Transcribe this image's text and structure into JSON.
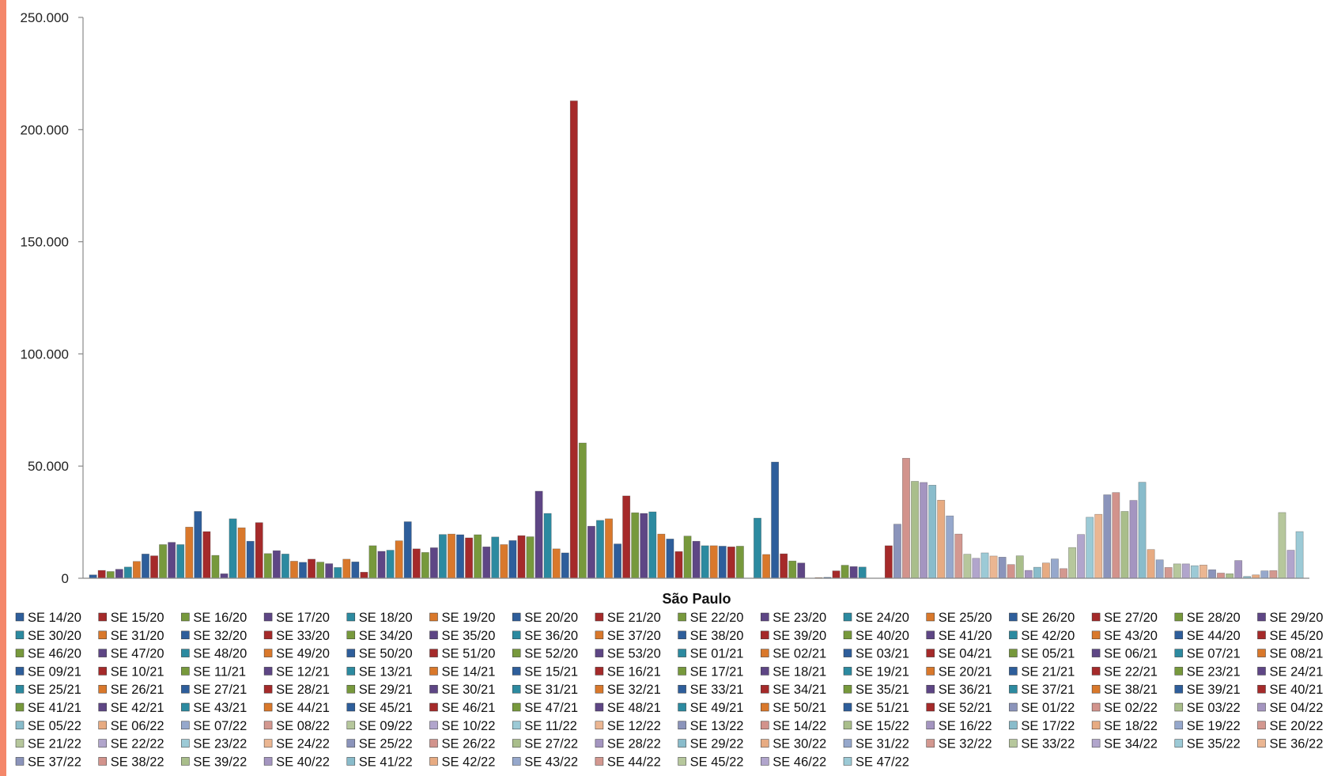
{
  "chart_data": {
    "type": "bar",
    "xlabel": "São Paulo",
    "ylabel": "",
    "ylim": [
      0,
      250000
    ],
    "y_ticks": [
      {
        "value": 0,
        "label": "0"
      },
      {
        "value": 50000,
        "label": "50.000"
      },
      {
        "value": 100000,
        "label": "100.000"
      },
      {
        "value": 150000,
        "label": "150.000"
      },
      {
        "value": 200000,
        "label": "200.000"
      },
      {
        "value": 250000,
        "label": "250.000"
      }
    ],
    "grid": false,
    "legend_position": "bottom",
    "colors": [
      "#2e5e9b",
      "#a52a2a",
      "#77993c",
      "#5e4685",
      "#2c8aa0",
      "#d9782b"
    ],
    "series": [
      {
        "name": "SE 14/20",
        "value": 1500
      },
      {
        "name": "SE 15/20",
        "value": 3500
      },
      {
        "name": "SE 16/20",
        "value": 3000
      },
      {
        "name": "SE 17/20",
        "value": 4000
      },
      {
        "name": "SE 18/20",
        "value": 5000
      },
      {
        "name": "SE 19/20",
        "value": 7500
      },
      {
        "name": "SE 20/20",
        "value": 10800
      },
      {
        "name": "SE 21/20",
        "value": 10000
      },
      {
        "name": "SE 22/20",
        "value": 15000
      },
      {
        "name": "SE 23/20",
        "value": 16000
      },
      {
        "name": "SE 24/20",
        "value": 15000
      },
      {
        "name": "SE 25/20",
        "value": 22800
      },
      {
        "name": "SE 26/20",
        "value": 29800
      },
      {
        "name": "SE 27/20",
        "value": 20800
      },
      {
        "name": "SE 28/20",
        "value": 10200
      },
      {
        "name": "SE 29/20",
        "value": 2000
      },
      {
        "name": "SE 30/20",
        "value": 26500
      },
      {
        "name": "SE 31/20",
        "value": 22500
      },
      {
        "name": "SE 32/20",
        "value": 16500
      },
      {
        "name": "SE 33/20",
        "value": 24800
      },
      {
        "name": "SE 34/20",
        "value": 11000
      },
      {
        "name": "SE 35/20",
        "value": 12300
      },
      {
        "name": "SE 36/20",
        "value": 10800
      },
      {
        "name": "SE 37/20",
        "value": 7600
      },
      {
        "name": "SE 38/20",
        "value": 7100
      },
      {
        "name": "SE 39/20",
        "value": 8500
      },
      {
        "name": "SE 40/20",
        "value": 7200
      },
      {
        "name": "SE 41/20",
        "value": 6500
      },
      {
        "name": "SE 42/20",
        "value": 4800
      },
      {
        "name": "SE 43/20",
        "value": 8500
      },
      {
        "name": "SE 44/20",
        "value": 7300
      },
      {
        "name": "SE 45/20",
        "value": 2700
      },
      {
        "name": "SE 46/20",
        "value": 14500
      },
      {
        "name": "SE 47/20",
        "value": 12000
      },
      {
        "name": "SE 48/20",
        "value": 12500
      },
      {
        "name": "SE 49/20",
        "value": 16700
      },
      {
        "name": "SE 50/20",
        "value": 25200
      },
      {
        "name": "SE 51/20",
        "value": 13100
      },
      {
        "name": "SE 52/20",
        "value": 11500
      },
      {
        "name": "SE 53/20",
        "value": 13600
      },
      {
        "name": "SE 01/21",
        "value": 19500
      },
      {
        "name": "SE 02/21",
        "value": 19700
      },
      {
        "name": "SE 03/21",
        "value": 19400
      },
      {
        "name": "SE 04/21",
        "value": 18000
      },
      {
        "name": "SE 05/21",
        "value": 19400
      },
      {
        "name": "SE 06/21",
        "value": 14000
      },
      {
        "name": "SE 07/21",
        "value": 18400
      },
      {
        "name": "SE 08/21",
        "value": 15000
      },
      {
        "name": "SE 09/21",
        "value": 16800
      },
      {
        "name": "SE 10/21",
        "value": 19000
      },
      {
        "name": "SE 11/21",
        "value": 18500
      },
      {
        "name": "SE 12/21",
        "value": 38800
      },
      {
        "name": "SE 13/21",
        "value": 28900
      },
      {
        "name": "SE 14/21",
        "value": 13100
      },
      {
        "name": "SE 15/21",
        "value": 11300
      },
      {
        "name": "SE 16/21",
        "value": 212800
      },
      {
        "name": "SE 17/21",
        "value": 60300
      },
      {
        "name": "SE 18/21",
        "value": 23200
      },
      {
        "name": "SE 19/21",
        "value": 25800
      },
      {
        "name": "SE 20/21",
        "value": 26500
      },
      {
        "name": "SE 21/21",
        "value": 15300
      },
      {
        "name": "SE 22/21",
        "value": 36700
      },
      {
        "name": "SE 23/21",
        "value": 29200
      },
      {
        "name": "SE 24/21",
        "value": 28900
      },
      {
        "name": "SE 25/21",
        "value": 29600
      },
      {
        "name": "SE 26/21",
        "value": 19700
      },
      {
        "name": "SE 27/21",
        "value": 17500
      },
      {
        "name": "SE 28/21",
        "value": 11900
      },
      {
        "name": "SE 29/21",
        "value": 18800
      },
      {
        "name": "SE 30/21",
        "value": 16500
      },
      {
        "name": "SE 31/21",
        "value": 14500
      },
      {
        "name": "SE 32/21",
        "value": 14500
      },
      {
        "name": "SE 33/21",
        "value": 14300
      },
      {
        "name": "SE 34/21",
        "value": 14000
      },
      {
        "name": "SE 35/21",
        "value": 14300
      },
      {
        "name": "SE 36/21",
        "value": 0
      },
      {
        "name": "SE 37/21",
        "value": 26800
      },
      {
        "name": "SE 38/21",
        "value": 10600
      },
      {
        "name": "SE 39/21",
        "value": 51800
      },
      {
        "name": "SE 40/21",
        "value": 10900
      },
      {
        "name": "SE 41/21",
        "value": 7700
      },
      {
        "name": "SE 42/21",
        "value": 6800
      },
      {
        "name": "SE 43/21",
        "value": 0
      },
      {
        "name": "SE 44/21",
        "value": 300
      },
      {
        "name": "SE 45/21",
        "value": 400
      },
      {
        "name": "SE 46/21",
        "value": 3300
      },
      {
        "name": "SE 47/21",
        "value": 5800
      },
      {
        "name": "SE 48/21",
        "value": 5200
      },
      {
        "name": "SE 49/21",
        "value": 5000
      },
      {
        "name": "SE 50/21",
        "value": 0
      },
      {
        "name": "SE 51/21",
        "value": 0
      },
      {
        "name": "SE 52/21",
        "value": 14500
      },
      {
        "name": "SE 01/22",
        "value": 24100
      },
      {
        "name": "SE 02/22",
        "value": 53500
      },
      {
        "name": "SE 03/22",
        "value": 43200
      },
      {
        "name": "SE 04/22",
        "value": 42700
      },
      {
        "name": "SE 05/22",
        "value": 41500
      },
      {
        "name": "SE 06/22",
        "value": 34800
      },
      {
        "name": "SE 07/22",
        "value": 27800
      },
      {
        "name": "SE 08/22",
        "value": 19700
      },
      {
        "name": "SE 09/22",
        "value": 10700
      },
      {
        "name": "SE 10/22",
        "value": 8900
      },
      {
        "name": "SE 11/22",
        "value": 11300
      },
      {
        "name": "SE 12/22",
        "value": 9900
      },
      {
        "name": "SE 13/22",
        "value": 9400
      },
      {
        "name": "SE 14/22",
        "value": 6100
      },
      {
        "name": "SE 15/22",
        "value": 10000
      },
      {
        "name": "SE 16/22",
        "value": 3500
      },
      {
        "name": "SE 17/22",
        "value": 4900
      },
      {
        "name": "SE 18/22",
        "value": 6800
      },
      {
        "name": "SE 19/22",
        "value": 8600
      },
      {
        "name": "SE 20/22",
        "value": 4300
      },
      {
        "name": "SE 21/22",
        "value": 13700
      },
      {
        "name": "SE 22/22",
        "value": 19500
      },
      {
        "name": "SE 23/22",
        "value": 27200
      },
      {
        "name": "SE 24/22",
        "value": 28500
      },
      {
        "name": "SE 25/22",
        "value": 37200
      },
      {
        "name": "SE 26/22",
        "value": 38200
      },
      {
        "name": "SE 27/22",
        "value": 29800
      },
      {
        "name": "SE 28/22",
        "value": 34700
      },
      {
        "name": "SE 29/22",
        "value": 42800
      },
      {
        "name": "SE 30/22",
        "value": 12800
      },
      {
        "name": "SE 31/22",
        "value": 8200
      },
      {
        "name": "SE 32/22",
        "value": 4800
      },
      {
        "name": "SE 33/22",
        "value": 6400
      },
      {
        "name": "SE 34/22",
        "value": 6400
      },
      {
        "name": "SE 35/22",
        "value": 5600
      },
      {
        "name": "SE 36/22",
        "value": 5900
      },
      {
        "name": "SE 37/22",
        "value": 3800
      },
      {
        "name": "SE 38/22",
        "value": 2300
      },
      {
        "name": "SE 39/22",
        "value": 2000
      },
      {
        "name": "SE 40/22",
        "value": 7900
      },
      {
        "name": "SE 41/22",
        "value": 800
      },
      {
        "name": "SE 42/22",
        "value": 1500
      },
      {
        "name": "SE 43/22",
        "value": 3300
      },
      {
        "name": "SE 44/22",
        "value": 3400
      },
      {
        "name": "SE 45/22",
        "value": 29300
      },
      {
        "name": "SE 46/22",
        "value": 12500
      },
      {
        "name": "SE 47/22",
        "value": 20800
      }
    ]
  }
}
